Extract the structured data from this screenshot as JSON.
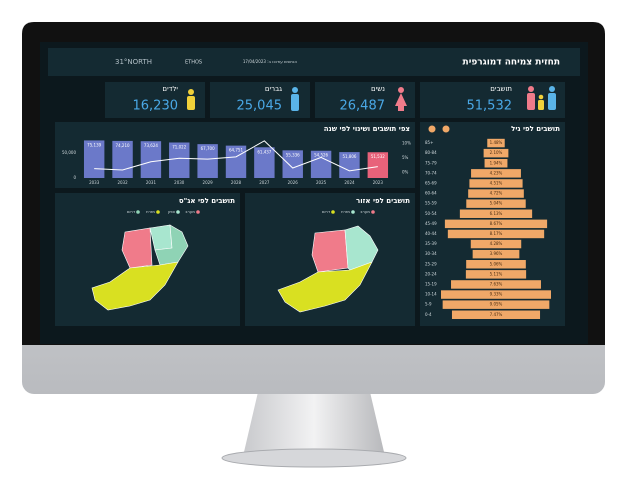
{
  "header": {
    "title": "תחזית צמיחה דמוגרפית",
    "updated": "הנתונים עודכנו ב: 17/04/2023",
    "logo": "31°NORTH",
    "logo2": "ETHOS"
  },
  "kpis": [
    {
      "label": "תושבים",
      "value": "51,532"
    },
    {
      "label": "נשים",
      "value": "26,487"
    },
    {
      "label": "גברים",
      "value": "25,045"
    },
    {
      "label": "ילדים",
      "value": "16,230"
    }
  ],
  "chart_data": [
    {
      "type": "bar",
      "title": "צפי תושבים ושינוי לפי שנה",
      "categories": [
        "2033",
        "2032",
        "2031",
        "2030",
        "2029",
        "2028",
        "2027",
        "2026",
        "2025",
        "2024",
        "2023"
      ],
      "series": [
        {
          "colors": [
            "#6b79c9",
            "#6b79c9",
            "#6b79c9",
            "#6b79c9",
            "#6b79c9",
            "#6b79c9",
            "#6b79c9",
            "#6b79c9",
            "#6b79c9",
            "#6b79c9",
            "#e8627a"
          ],
          "values": [
            75139,
            74210,
            73624,
            71022,
            67700,
            64751,
            61437,
            55336,
            54526,
            51806,
            51532
          ],
          "value_labels": [
            "75,139",
            "74,210",
            "73,624",
            "71,022",
            "67,700",
            "64,751",
            "61,437",
            "55,336",
            "54,526",
            "51,806",
            "51,532"
          ]
        },
        {
          "type": "line",
          "axis": "y2",
          "color": "#ffffff",
          "values": [
            1.3,
            0.8,
            3.7,
            4.9,
            4.6,
            5.4,
            11,
            1.5,
            5.2,
            0.5,
            2
          ]
        }
      ],
      "ylim": [
        0,
        80000
      ],
      "yticks": [
        0,
        {
          "value": 50000,
          "label": "50,000"
        }
      ],
      "y2lim": [
        -2,
        12
      ],
      "y2ticks": [
        {
          "value": 0,
          "label": "0%"
        },
        {
          "value": 5,
          "label": "5%"
        },
        {
          "value": 10,
          "label": "10%"
        }
      ]
    },
    {
      "type": "hbar",
      "title": "תושבים לפי גיל",
      "color": "#f0a868",
      "categories": [
        "85+",
        "80-84",
        "75-79",
        "70-74",
        "65-69",
        "60-64",
        "55-59",
        "50-54",
        "45-49",
        "40-44",
        "35-39",
        "30-34",
        "25-29",
        "20-24",
        "15-19",
        "10-14",
        "5-9",
        "0-4"
      ],
      "values": [
        1.48,
        2.1,
        1.94,
        4.23,
        4.51,
        4.72,
        5.04,
        6.13,
        8.67,
        8.17,
        4.28,
        3.96,
        5.06,
        5.11,
        7.63,
        9.33,
        9.05,
        7.47
      ],
      "value_labels": [
        "1.48%",
        "2.10%",
        "1.94%",
        "4.23%",
        "4.51%",
        "4.72%",
        "5.04%",
        "6.13%",
        "8.67%",
        "8.17%",
        "4.28%",
        "3.96%",
        "5.06%",
        "5.11%",
        "7.63%",
        "9.33%",
        "9.05%",
        "7.47%"
      ]
    }
  ],
  "maps": [
    {
      "title": "תושבים לפי אזור",
      "legend": [
        "מערב",
        "מזרח",
        "דרום"
      ]
    },
    {
      "title": "תושבים לפי אג\"ס",
      "legend": [
        "מערב",
        "צפון",
        "מזרח",
        "דרום"
      ]
    }
  ]
}
